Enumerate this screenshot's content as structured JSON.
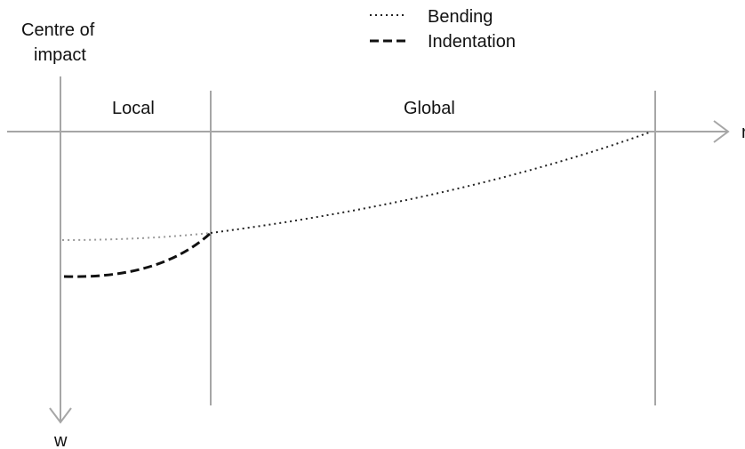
{
  "diagram": {
    "origin_label_line1": "Centre of",
    "origin_label_line2": "impact",
    "region_local": "Local",
    "region_global": "Global",
    "axis_w": "w",
    "axis_r": "r",
    "legend": {
      "bending": "Bending",
      "indentation": "Indentation"
    },
    "colors": {
      "axis": "#a6a6a6",
      "bending": "#222222",
      "indentation": "#111111",
      "text": "#111111"
    }
  }
}
